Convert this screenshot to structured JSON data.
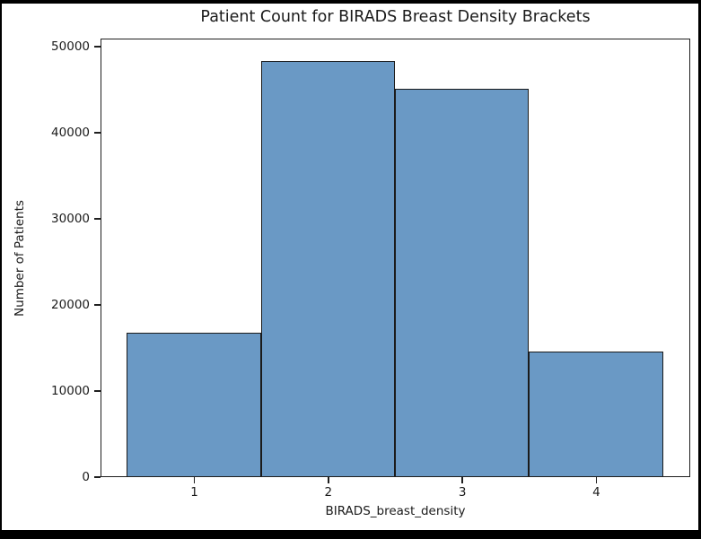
{
  "window": {
    "background": "#ffffff",
    "frame_color": "#000000"
  },
  "chart_data": {
    "type": "bar",
    "title": "Patient Count for BIRADS Breast Density Brackets",
    "xlabel": "BIRADS_breast_density",
    "ylabel": "Number of Patients",
    "categories": [
      "1",
      "2",
      "3",
      "4"
    ],
    "values": [
      16700,
      48200,
      45000,
      14500
    ],
    "yticks": [
      0,
      10000,
      20000,
      30000,
      40000,
      50000
    ],
    "ytick_labels": [
      "0",
      "10000",
      "20000",
      "30000",
      "40000",
      "50000"
    ],
    "ylim": [
      0,
      50900
    ],
    "xlim": [
      0.3,
      4.7
    ],
    "bar_width": 1.0,
    "grid": false,
    "legend": null,
    "bar_fill": "#6a99c5",
    "bar_edge": "#1b1b1b",
    "spine_color": "#1f1f1f",
    "text_color": "#1a1a1a"
  }
}
